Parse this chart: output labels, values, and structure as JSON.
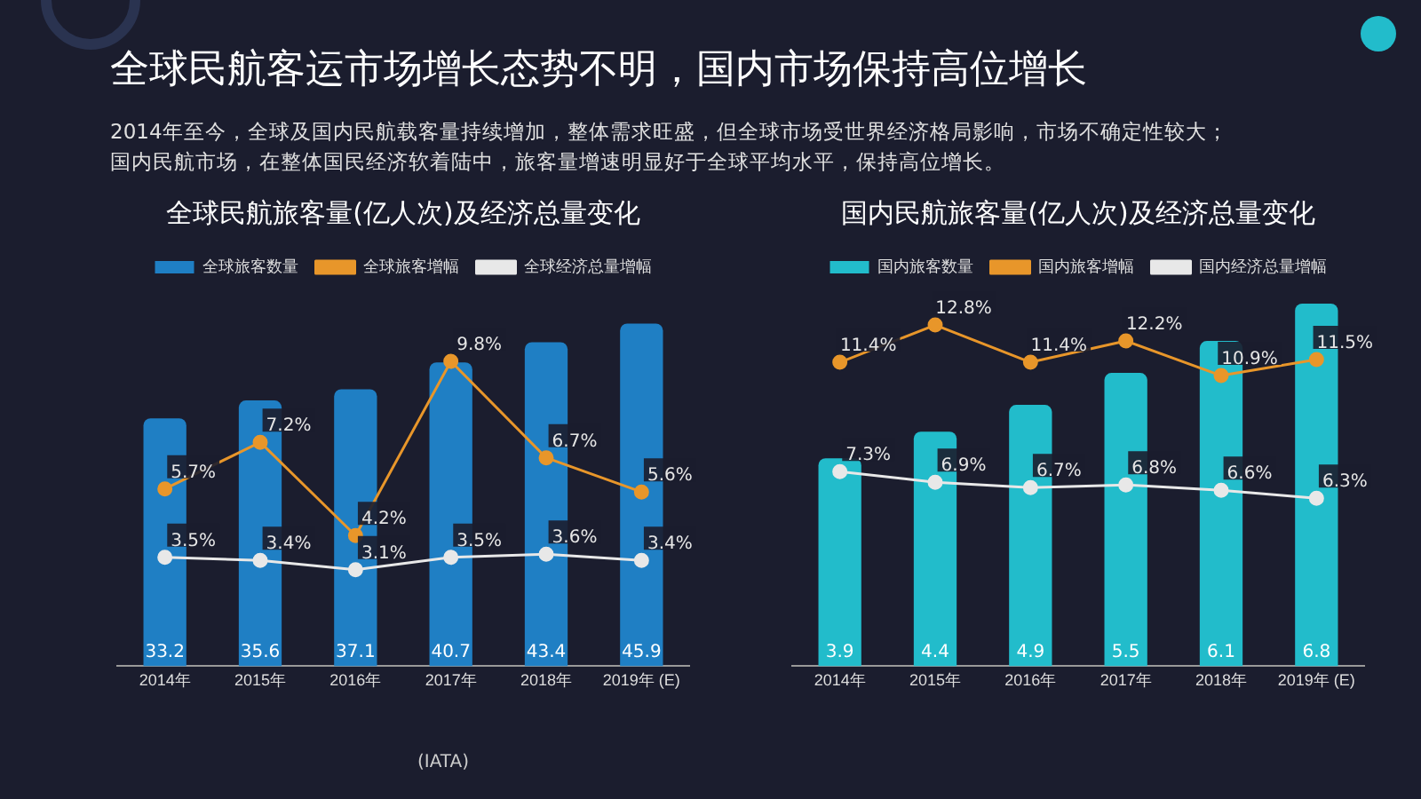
{
  "chart_data": [
    {
      "type": "bar",
      "title": "全球民航旅客量(亿人次)及经济总量变化",
      "annotations": [
        "全球民航客运市场增长态势不明，国内市场保持高位增长",
        "2014年至今，全球及国内民航载客量持续增加，整体需求旺盛，但全球市场受世界经济格局影响，市场不确定性较大；",
        "国内民航市场，在整体国民经济软着陆中，旅客量增速明显好于全球平均水平，保持高位增长。",
        "(IATA)"
      ],
      "categories": [
        "2014年",
        "2015年",
        "2016年",
        "2017年",
        "2018年",
        "2019年 (E)"
      ],
      "series": [
        {
          "name": "全球旅客数量",
          "color": "#1f7fc4",
          "values": [
            33.2,
            35.6,
            37.1,
            40.7,
            43.4,
            45.9
          ],
          "value_labels": [
            "33.2",
            "35.6",
            "37.1",
            "40.7",
            "43.4",
            "45.9"
          ]
        },
        {
          "name": "全球旅客增幅",
          "type": "line",
          "axis": "y2",
          "color": "#e8962a",
          "values": [
            5.7,
            7.2,
            4.2,
            9.8,
            6.7,
            5.6
          ],
          "value_labels": [
            "5.7%",
            "7.2%",
            "4.2%",
            "9.8%",
            "6.7%",
            "5.6%"
          ]
        },
        {
          "name": "全球经济总量增幅",
          "type": "line",
          "axis": "y2",
          "color": "#e8e8e8",
          "values": [
            3.5,
            3.4,
            3.1,
            3.5,
            3.6,
            3.4
          ],
          "value_labels": [
            "3.5%",
            "3.4%",
            "3.1%",
            "3.5%",
            "3.6%",
            "3.4%"
          ]
        }
      ],
      "legend": "top",
      "grid": false,
      "marker": "circle",
      "tick_labels": "x"
    },
    {
      "type": "bar",
      "title": "国内民航旅客量(亿人次)及经济总量变化",
      "categories": [
        "2014年",
        "2015年",
        "2016年",
        "2017年",
        "2018年",
        "2019年 (E)"
      ],
      "series": [
        {
          "name": "国内旅客数量",
          "color": "#22bccb",
          "values": [
            3.9,
            4.4,
            4.9,
            5.5,
            6.1,
            6.8
          ],
          "value_labels": [
            "3.9",
            "4.4",
            "4.9",
            "5.5",
            "6.1",
            "6.8"
          ]
        },
        {
          "name": "国内旅客增幅",
          "type": "line",
          "axis": "y2",
          "color": "#e8962a",
          "values": [
            11.4,
            12.8,
            11.4,
            12.2,
            10.9,
            11.5
          ],
          "value_labels": [
            "11.4%",
            "12.8%",
            "11.4%",
            "12.2%",
            "10.9%",
            "11.5%"
          ]
        },
        {
          "name": "国内经济总量增幅",
          "type": "line",
          "axis": "y2",
          "color": "#e8e8e8",
          "values": [
            7.3,
            6.9,
            6.7,
            6.8,
            6.6,
            6.3
          ],
          "value_labels": [
            "7.3%",
            "6.9%",
            "6.7%",
            "6.8%",
            "6.6%",
            "6.3%"
          ]
        }
      ],
      "legend": "top",
      "grid": false,
      "marker": "circle",
      "tick_labels": "x"
    }
  ]
}
